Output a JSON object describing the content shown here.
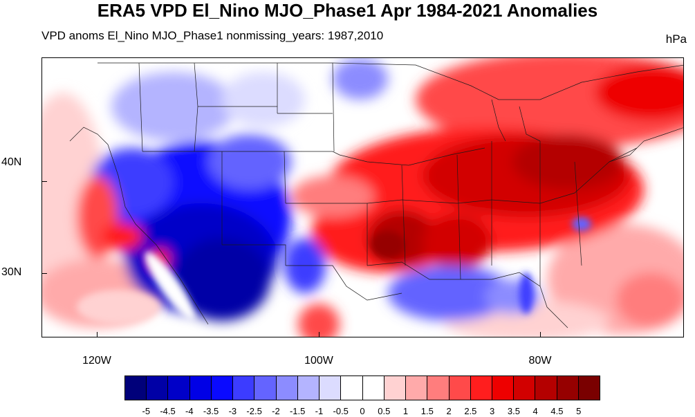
{
  "title": "ERA5 VPD El_Nino MJO_Phase1 Apr 1984-2021 Anomalies",
  "subtitle": "VPD anoms El_Nino MJO_Phase1 nonmissing_years: 1987,2010",
  "units": "hPa",
  "latitude_labels": [
    "40N",
    "30N"
  ],
  "longitude_labels": [
    "120W",
    "100W",
    "80W"
  ],
  "colorbar": {
    "levels": [
      "-5",
      "-4.5",
      "-4",
      "-3.5",
      "-3",
      "-2.5",
      "-2",
      "-1.5",
      "-1",
      "-0.5",
      "0",
      "0.5",
      "1",
      "1.5",
      "2",
      "2.5",
      "3",
      "3.5",
      "4",
      "4.5",
      "5"
    ],
    "colors": [
      "#00007a",
      "#0000a6",
      "#0000c8",
      "#0000e6",
      "#0a0aff",
      "#3c3cff",
      "#6464ff",
      "#8c8cff",
      "#b4b4ff",
      "#dcdcff",
      "#ffffff",
      "#ffffff",
      "#ffd2d2",
      "#ffaaaa",
      "#ff7d7d",
      "#ff4a4a",
      "#ff1e1e",
      "#ee0000",
      "#d20000",
      "#b40000",
      "#960000",
      "#7a0000"
    ]
  }
}
